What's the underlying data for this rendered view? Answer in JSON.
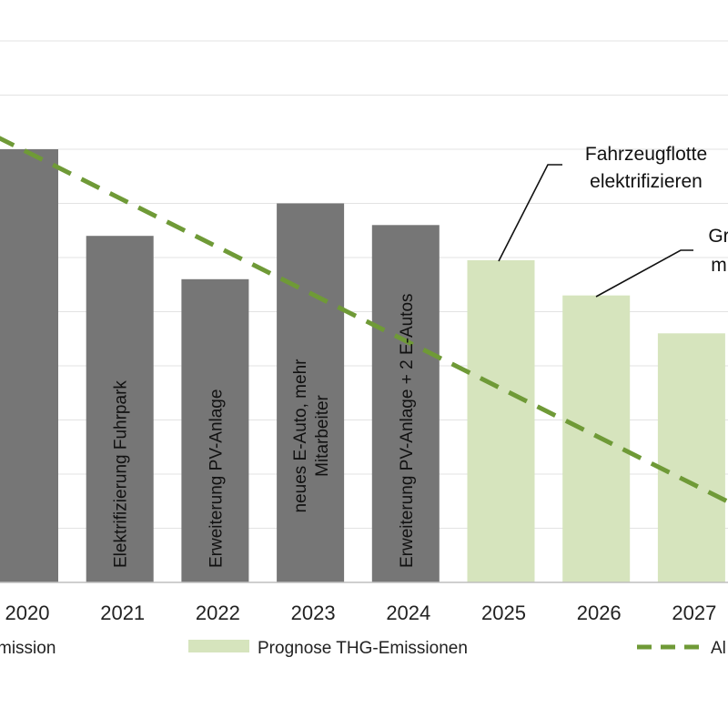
{
  "chart_data": {
    "type": "bar",
    "title": "",
    "xlabel": "",
    "ylabel": "",
    "ylim": [
      0,
      11
    ],
    "grid": true,
    "categories": [
      "2020",
      "2021",
      "2022",
      "2023",
      "2024",
      "2025",
      "2026",
      "2027"
    ],
    "series": [
      {
        "name": "…mission",
        "kind": "bar",
        "color": "#767676",
        "values": [
          8.0,
          6.4,
          5.6,
          7.0,
          6.6,
          null,
          null,
          null
        ]
      },
      {
        "name": "Prognose THG-Emissionen",
        "kind": "bar",
        "color": "#d6e4bd",
        "values": [
          null,
          null,
          null,
          null,
          null,
          5.95,
          5.3,
          4.6
        ]
      },
      {
        "name": "Al…",
        "kind": "line",
        "style": "dashed",
        "color": "#6f9a37",
        "x": [
          "2019.4",
          "2027.6"
        ],
        "values": [
          8.5,
          1.3
        ]
      }
    ],
    "bar_labels": [
      {
        "category": "2021",
        "text": "Elektrifizierung Fuhrpark"
      },
      {
        "category": "2022",
        "text": "Erweiterung PV-Anlage"
      },
      {
        "category": "2023",
        "lines": [
          "neues E-Auto, mehr",
          "Mitarbeiter"
        ]
      },
      {
        "category": "2024",
        "text": "Erweiterung PV-Anlage + 2 E-Autos"
      }
    ],
    "annotations": [
      {
        "category": "2025",
        "lines": [
          "Fahrzeugflotte",
          "elektrifizieren"
        ]
      },
      {
        "category": "2026",
        "lines": [
          "Gr",
          "m"
        ]
      }
    ],
    "legend_position": "bottom"
  }
}
